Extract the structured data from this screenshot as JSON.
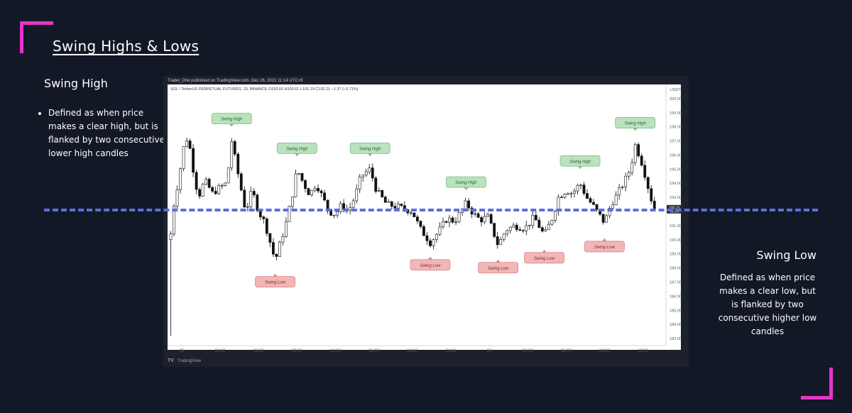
{
  "slide": {
    "title": "Swing Highs & Lows",
    "swing_high": {
      "heading": "Swing High",
      "bullet": "Defined as when price makes a clear high, but is flanked by two consecutive lower high candles"
    },
    "swing_low": {
      "heading": "Swing Low",
      "description": "Defined as when price makes a clear low, but is flanked by two consecutive higher low candles"
    },
    "accent_color": "#e535c9",
    "line_color": "#5a6fe0"
  },
  "tv": {
    "published": "Tradel_One published on TradingView.com, Dec 26, 2021 11:14 UTC+8",
    "symbol_line": "SOL / TetherUS PERPETUAL FUTURES, 15, BINANCE  O193.60 H193.61 L191.19 C192.21 −1.37 (−0.71%)",
    "currency": "USDT",
    "footer": "TradingView",
    "price_tag": "192.21",
    "price_tag_time": "01:01"
  },
  "chart_data": {
    "type": "candlestick",
    "ylim": [
      182.5,
      201
    ],
    "y_ticks": [
      "200.00",
      "199.00",
      "198.00",
      "197.00",
      "196.00",
      "195.00",
      "194.00",
      "193.00",
      "192.00",
      "191.00",
      "190.00",
      "189.00",
      "188.00",
      "187.00",
      "186.00",
      "185.00",
      "184.00",
      "183.00"
    ],
    "x_ticks": [
      "25",
      "03:00",
      "06:00",
      "09:00",
      "12:00",
      "15:00",
      "18:00",
      "21:00",
      "26",
      "03:00",
      "06:00",
      "09:00",
      "12:00"
    ],
    "x_tick_hours": [
      0,
      3,
      6,
      9,
      12,
      15,
      18,
      21,
      24,
      27,
      30,
      33,
      36
    ],
    "xlim_hours": [
      -1.1,
      37.8
    ],
    "reference_price": 192.1,
    "annotations": [
      {
        "text": "Swing High",
        "kind": "high",
        "t": 3.9,
        "price": 197.2
      },
      {
        "text": "Swing High",
        "kind": "high",
        "t": 9.0,
        "price": 195.1
      },
      {
        "text": "Swing High",
        "kind": "high",
        "t": 14.7,
        "price": 195.1
      },
      {
        "text": "Swing High",
        "kind": "high",
        "t": 22.2,
        "price": 192.7
      },
      {
        "text": "Swing High",
        "kind": "high",
        "t": 31.1,
        "price": 194.2
      },
      {
        "text": "Swing High",
        "kind": "high",
        "t": 35.4,
        "price": 196.9
      },
      {
        "text": "Swing Low",
        "kind": "low",
        "t": 7.3,
        "price": 188.5
      },
      {
        "text": "Swing Low",
        "kind": "low",
        "t": 19.4,
        "price": 189.7
      },
      {
        "text": "Swing Low",
        "kind": "low",
        "t": 24.7,
        "price": 189.5
      },
      {
        "text": "Swing Low",
        "kind": "low",
        "t": 28.3,
        "price": 190.2
      },
      {
        "text": "Swing Low",
        "kind": "low",
        "t": 33.0,
        "price": 191.0
      }
    ],
    "path": [
      [
        -0.9,
        190.0
      ],
      [
        -0.6,
        192.5
      ],
      [
        -0.2,
        194.5
      ],
      [
        0.2,
        196.8
      ],
      [
        0.5,
        197.3
      ],
      [
        0.9,
        195.0
      ],
      [
        1.3,
        193.0
      ],
      [
        1.8,
        194.2
      ],
      [
        2.4,
        193.3
      ],
      [
        3.0,
        193.7
      ],
      [
        3.5,
        194.0
      ],
      [
        3.9,
        197.0
      ],
      [
        4.5,
        194.2
      ],
      [
        5.0,
        192.0
      ],
      [
        5.5,
        193.5
      ],
      [
        6.0,
        192.0
      ],
      [
        6.5,
        191.2
      ],
      [
        7.0,
        189.5
      ],
      [
        7.3,
        188.5
      ],
      [
        7.7,
        189.8
      ],
      [
        8.1,
        191.0
      ],
      [
        8.6,
        193.0
      ],
      [
        9.0,
        195.0
      ],
      [
        9.5,
        194.0
      ],
      [
        10.0,
        193.2
      ],
      [
        10.5,
        194.0
      ],
      [
        11.0,
        193.0
      ],
      [
        11.5,
        192.0
      ],
      [
        12.0,
        191.8
      ],
      [
        12.5,
        192.5
      ],
      [
        13.0,
        192.0
      ],
      [
        13.5,
        193.0
      ],
      [
        14.0,
        194.5
      ],
      [
        14.7,
        195.0
      ],
      [
        15.2,
        193.5
      ],
      [
        16.0,
        192.5
      ],
      [
        17.0,
        192.3
      ],
      [
        18.0,
        192.0
      ],
      [
        18.6,
        190.8
      ],
      [
        19.4,
        189.8
      ],
      [
        20.0,
        190.5
      ],
      [
        20.7,
        191.5
      ],
      [
        21.3,
        191.3
      ],
      [
        21.8,
        192.0
      ],
      [
        22.2,
        192.6
      ],
      [
        22.8,
        191.8
      ],
      [
        23.3,
        191.4
      ],
      [
        23.9,
        191.6
      ],
      [
        24.7,
        189.6
      ],
      [
        25.3,
        190.7
      ],
      [
        26.0,
        191.0
      ],
      [
        26.8,
        190.8
      ],
      [
        27.5,
        191.6
      ],
      [
        28.3,
        190.3
      ],
      [
        28.9,
        191.5
      ],
      [
        29.4,
        193.0
      ],
      [
        30.0,
        193.5
      ],
      [
        30.5,
        193.3
      ],
      [
        31.1,
        194.0
      ],
      [
        31.6,
        193.0
      ],
      [
        32.2,
        192.3
      ],
      [
        33.0,
        191.2
      ],
      [
        33.5,
        192.5
      ],
      [
        34.0,
        193.2
      ],
      [
        34.6,
        194.2
      ],
      [
        35.0,
        195.0
      ],
      [
        35.4,
        196.7
      ],
      [
        35.8,
        195.8
      ],
      [
        36.2,
        194.5
      ],
      [
        36.6,
        193.0
      ],
      [
        36.9,
        192.2
      ]
    ]
  }
}
